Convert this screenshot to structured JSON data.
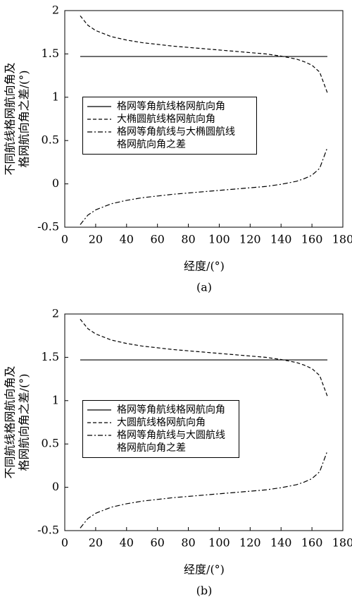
{
  "chart_data": [
    {
      "type": "line",
      "caption": "(a)",
      "xlabel": "经度/(°)",
      "ylabel": [
        "不同航线格网航向角及",
        "格网航向角之差/(°)"
      ],
      "xlim": [
        0,
        180
      ],
      "xticks": [
        0,
        20,
        40,
        60,
        80,
        100,
        120,
        140,
        160,
        180
      ],
      "ylim": [
        -0.5,
        2
      ],
      "yticks": [
        -0.5,
        0,
        0.5,
        1,
        1.5,
        2
      ],
      "x": [
        10,
        15,
        20,
        30,
        40,
        50,
        60,
        70,
        80,
        90,
        100,
        110,
        120,
        130,
        140,
        150,
        155,
        160,
        165,
        170
      ],
      "series": [
        {
          "name": "格网等角航线格网航向角",
          "color": "#000000",
          "style": "solid",
          "values": [
            1.47,
            1.47,
            1.47,
            1.47,
            1.47,
            1.47,
            1.47,
            1.47,
            1.47,
            1.47,
            1.47,
            1.47,
            1.47,
            1.47,
            1.47,
            1.47,
            1.47,
            1.47,
            1.47,
            1.47
          ]
        },
        {
          "name": "大椭圆航线格网航向角",
          "color": "#000000",
          "style": "dashed",
          "values": [
            1.94,
            1.83,
            1.77,
            1.7,
            1.66,
            1.63,
            1.61,
            1.59,
            1.575,
            1.56,
            1.545,
            1.53,
            1.515,
            1.5,
            1.475,
            1.44,
            1.41,
            1.37,
            1.29,
            1.05
          ]
        },
        {
          "name": "格网等角航线与大椭圆航线\n格网航向角之差",
          "color": "#000000",
          "style": "dashdot",
          "values": [
            -0.47,
            -0.36,
            -0.3,
            -0.23,
            -0.19,
            -0.16,
            -0.14,
            -0.12,
            -0.105,
            -0.09,
            -0.075,
            -0.06,
            -0.045,
            -0.03,
            -0.005,
            0.03,
            0.06,
            0.1,
            0.18,
            0.42
          ]
        }
      ]
    },
    {
      "type": "line",
      "caption": "(b)",
      "xlabel": "经度/(°)",
      "ylabel": [
        "不同航线格网航向角及",
        "格网航向角之差/(°)"
      ],
      "xlim": [
        0,
        180
      ],
      "xticks": [
        0,
        20,
        40,
        60,
        80,
        100,
        120,
        140,
        160,
        180
      ],
      "ylim": [
        -0.5,
        2
      ],
      "yticks": [
        -0.5,
        0,
        0.5,
        1,
        1.5,
        2
      ],
      "x": [
        10,
        15,
        20,
        30,
        40,
        50,
        60,
        70,
        80,
        90,
        100,
        110,
        120,
        130,
        140,
        150,
        155,
        160,
        165,
        170
      ],
      "series": [
        {
          "name": "格网等角航线格网航向角",
          "color": "#000000",
          "style": "solid",
          "values": [
            1.47,
            1.47,
            1.47,
            1.47,
            1.47,
            1.47,
            1.47,
            1.47,
            1.47,
            1.47,
            1.47,
            1.47,
            1.47,
            1.47,
            1.47,
            1.47,
            1.47,
            1.47,
            1.47,
            1.47
          ]
        },
        {
          "name": "大圆航线格网航向角",
          "color": "#000000",
          "style": "dashed",
          "values": [
            1.94,
            1.83,
            1.77,
            1.7,
            1.66,
            1.63,
            1.61,
            1.59,
            1.575,
            1.56,
            1.545,
            1.53,
            1.515,
            1.5,
            1.475,
            1.44,
            1.41,
            1.37,
            1.29,
            1.05
          ]
        },
        {
          "name": "格网等角航线与大圆航线\n格网航向角之差",
          "color": "#000000",
          "style": "dashdot",
          "values": [
            -0.47,
            -0.36,
            -0.3,
            -0.23,
            -0.19,
            -0.16,
            -0.14,
            -0.12,
            -0.105,
            -0.09,
            -0.075,
            -0.06,
            -0.045,
            -0.03,
            -0.005,
            0.03,
            0.06,
            0.1,
            0.18,
            0.42
          ]
        }
      ]
    }
  ]
}
